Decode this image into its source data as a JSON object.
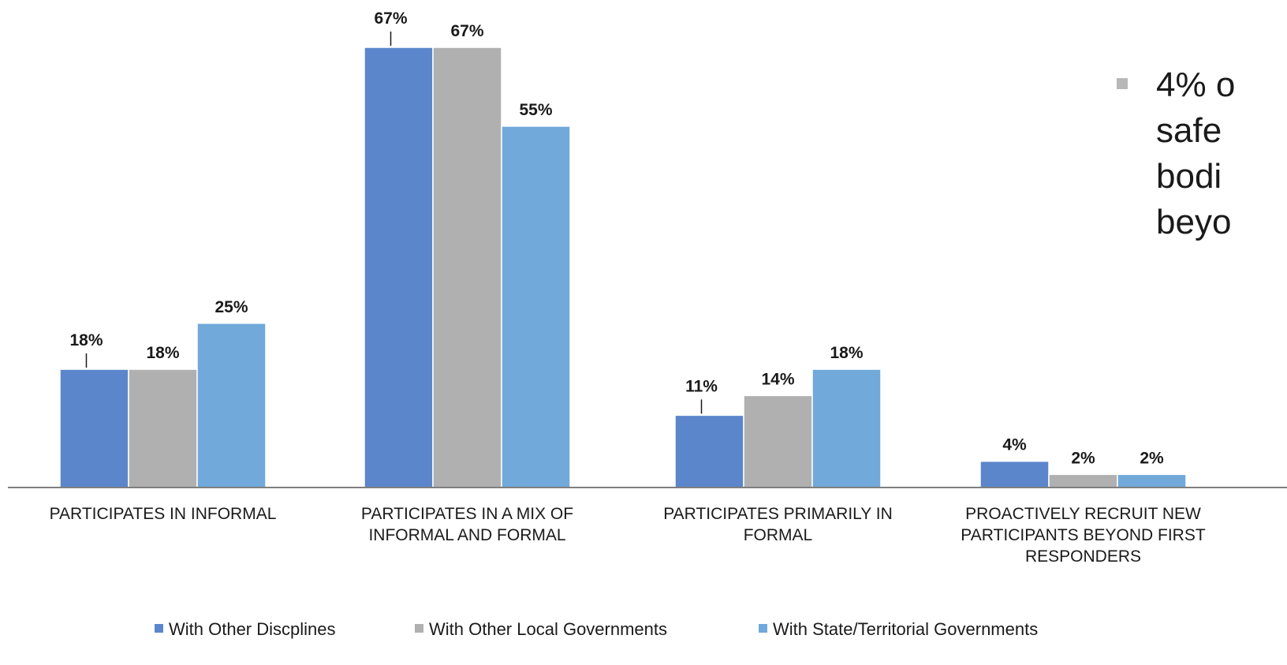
{
  "chart_data": {
    "type": "bar",
    "categories": [
      [
        "PARTICIPATES IN INFORMAL"
      ],
      [
        "PARTICIPATES IN A MIX OF",
        "INFORMAL AND FORMAL"
      ],
      [
        "PARTICIPATES PRIMARILY IN",
        "FORMAL"
      ],
      [
        "PROACTIVELY RECRUIT NEW",
        "PARTICIPANTS BEYOND FIRST",
        "RESPONDERS"
      ]
    ],
    "series": [
      {
        "name": "With Other Discplines",
        "color": "#5b86cb",
        "values": [
          18,
          67,
          11,
          4
        ]
      },
      {
        "name": "With Other Local Governments",
        "color": "#b0b0b0",
        "values": [
          18,
          67,
          14,
          2
        ]
      },
      {
        "name": "With State/Territorial Governments",
        "color": "#71a9da",
        "values": [
          25,
          55,
          18,
          2
        ]
      }
    ],
    "value_suffix": "%",
    "ylim": [
      0,
      67
    ],
    "grid": false,
    "legend_position": "bottom",
    "title": "",
    "xlabel": "",
    "ylabel": ""
  },
  "side_note": {
    "bullet_lines": [
      "4% o",
      "safe",
      "bodi",
      "beyo"
    ],
    "bullet_color": "#b8b8b8"
  }
}
